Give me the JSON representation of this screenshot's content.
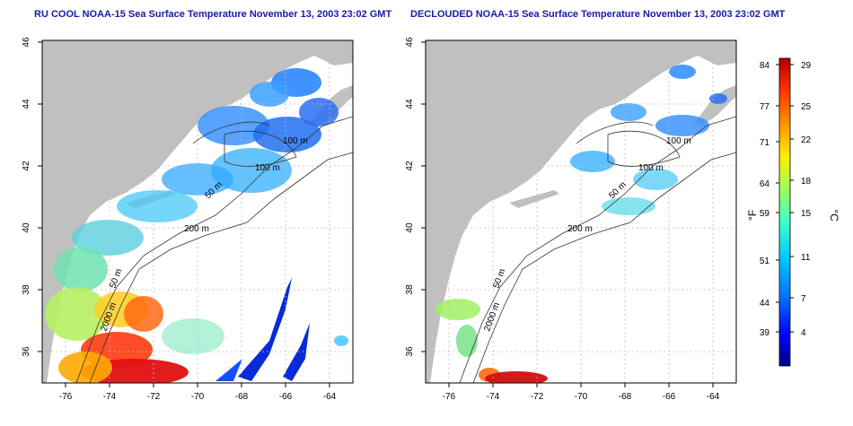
{
  "panels": [
    {
      "id": "left",
      "title": "RU COOL NOAA-15 Sea Surface Temperature November 13, 2003 23:02 GMT",
      "x_ticks": [
        "-76",
        "-74",
        "-72",
        "-70",
        "-68",
        "-66",
        "-64"
      ],
      "y_ticks": [
        "46",
        "44",
        "42",
        "40",
        "38",
        "36"
      ],
      "contour_labels": [
        "100 m",
        "100 m",
        "50 m",
        "200 m",
        "50 m",
        "2000 m"
      ]
    },
    {
      "id": "right",
      "title": "DECLOUDED NOAA-15 Sea Surface Temperature November 13, 2003 23:02 GMT",
      "x_ticks": [
        "-76",
        "-74",
        "-72",
        "-70",
        "-68",
        "-66",
        "-64"
      ],
      "y_ticks": [
        "46",
        "44",
        "42",
        "40",
        "38",
        "36"
      ],
      "contour_labels": [
        "100 m",
        "100 m",
        "50 m",
        "200 m",
        "50 m",
        "2000 m"
      ]
    }
  ],
  "colorbar": {
    "unit_f": "°F",
    "unit_c": "°C",
    "f_ticks": [
      "84",
      "77",
      "71",
      "64",
      "59",
      "51",
      "44",
      "39"
    ],
    "c_ticks": [
      "29",
      "25",
      "22",
      "18",
      "15",
      "11",
      "7",
      "4"
    ],
    "colors": [
      "#00008b",
      "#0000ff",
      "#0070ff",
      "#00c8ff",
      "#40ffc8",
      "#a0ff50",
      "#ffee00",
      "#ff9900",
      "#ff3000",
      "#b00000"
    ]
  },
  "map": {
    "land_color": "#c0c0c0",
    "grid_color": "#bbbbbb"
  }
}
